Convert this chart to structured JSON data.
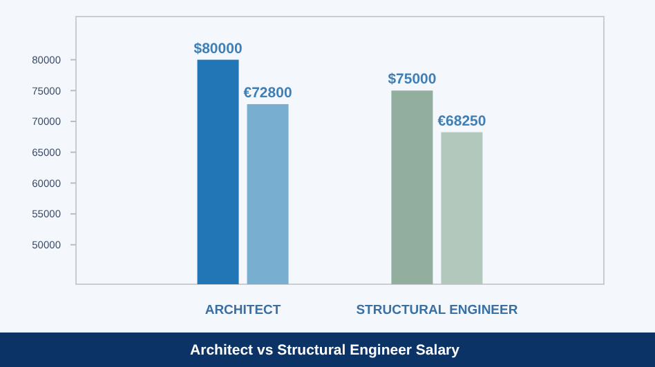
{
  "chart_data": {
    "type": "bar",
    "title": "Architect vs Structural Engineer Salary",
    "categories": [
      "ARCHITECT",
      "STRUCTURAL ENGINEER"
    ],
    "series": [
      {
        "colors": [
          "#2276b5",
          "#91ae9f"
        ],
        "values": [
          80000,
          75000
        ],
        "value_labels": [
          "$80000",
          "$75000"
        ]
      },
      {
        "colors": [
          "#78aed0",
          "#b3c8bc"
        ],
        "values": [
          72800,
          68250
        ],
        "value_labels": [
          "€72800",
          "€68250"
        ]
      }
    ],
    "ylim": [
      43600,
      87000
    ],
    "yticks": [
      50000,
      55000,
      60000,
      65000,
      70000,
      75000,
      80000
    ],
    "grid": false
  }
}
